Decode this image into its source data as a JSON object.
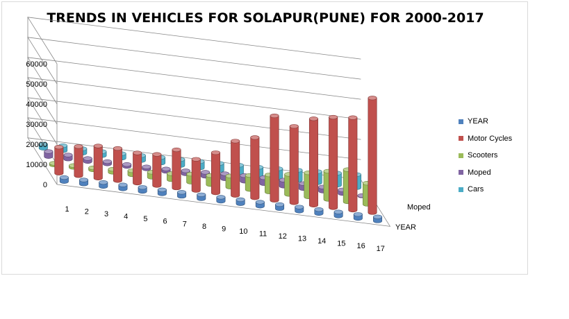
{
  "chart_data": {
    "type": "bar",
    "title": "TRENDS IN VEHICLES FOR SOLAPUR(PUNE) FOR 2000-2017",
    "categories": [
      "1",
      "2",
      "3",
      "4",
      "5",
      "6",
      "7",
      "8",
      "9",
      "10",
      "11",
      "12",
      "13",
      "14",
      "15",
      "16",
      "17"
    ],
    "ylim": [
      0,
      60000
    ],
    "yticks": [
      "0",
      "10000",
      "20000",
      "30000",
      "40000",
      "50000",
      "60000"
    ],
    "depth_axis_labels": [
      "Moped",
      "YEAR"
    ],
    "legend_position": "right",
    "grid": true,
    "series": [
      {
        "name": "YEAR",
        "color": "#4f81bd",
        "values": [
          2000,
          2001,
          2002,
          2003,
          2004,
          2005,
          2006,
          2007,
          2008,
          2009,
          2010,
          2011,
          2012,
          2013,
          2014,
          2015,
          2016
        ]
      },
      {
        "name": "Motor Cycles",
        "color": "#c0504d",
        "values": [
          13000,
          14500,
          16000,
          16000,
          15000,
          15500,
          19000,
          15500,
          20000,
          27000,
          30000,
          42000,
          38000,
          43000,
          45000,
          46000,
          57000
        ]
      },
      {
        "name": "Scooters",
        "color": "#9bbb59",
        "values": [
          800,
          900,
          1000,
          1500,
          2000,
          2500,
          3000,
          4000,
          4500,
          5500,
          7000,
          8500,
          10000,
          12000,
          14000,
          16000,
          10500
        ]
      },
      {
        "name": "Moped",
        "color": "#8064a2",
        "values": [
          2500,
          2000,
          1500,
          1200,
          1000,
          1000,
          1200,
          1500,
          2000,
          2500,
          2800,
          3000,
          3000,
          2500,
          2000,
          1800,
          200
        ]
      },
      {
        "name": "Cars",
        "color": "#4bacc6",
        "values": [
          2000,
          2500,
          2200,
          2000,
          2200,
          2500,
          2800,
          3000,
          3200,
          3500,
          3800,
          4000,
          4500,
          5000,
          5500,
          6000,
          6500
        ]
      }
    ]
  }
}
